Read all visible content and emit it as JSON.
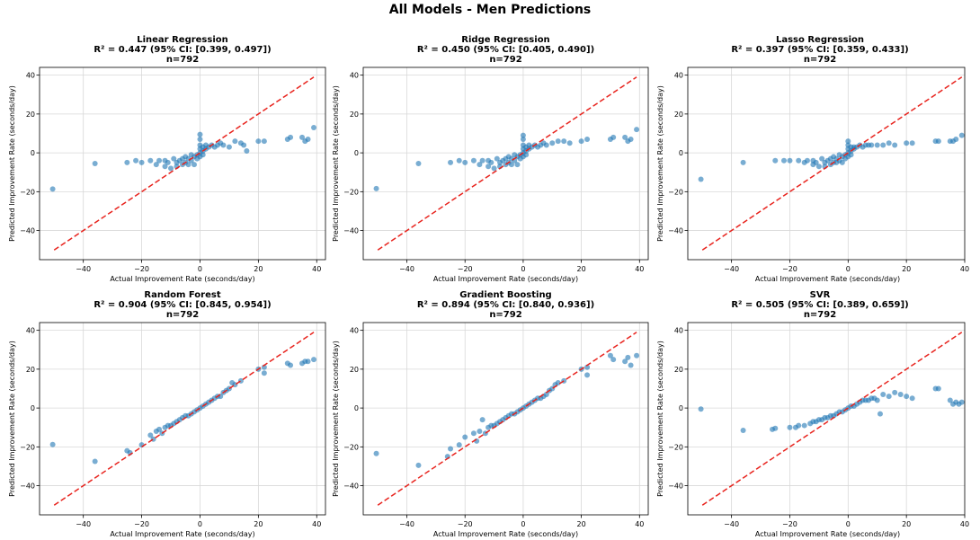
{
  "suptitle": "All Models - Men Predictions",
  "chart_data": [
    {
      "type": "scatter",
      "title_lines": [
        "Linear Regression",
        "R² = 0.447 (95% CI: [0.399, 0.497])",
        "n=792"
      ],
      "xlabel": "Actual Improvement Rate (seconds/day)",
      "ylabel": "Predicted Improvement Rate (seconds/day)",
      "xlim": [
        -55,
        43
      ],
      "ylim": [
        -55,
        44
      ],
      "xticks": [
        -40,
        -20,
        0,
        20,
        40
      ],
      "yticks": [
        -40,
        -20,
        0,
        20,
        40
      ],
      "grid": true,
      "reference_line": [
        [
          -50,
          -50
        ],
        [
          39,
          39
        ]
      ],
      "points": [
        [
          -50.5,
          -18.6
        ],
        [
          -36,
          -5.5
        ],
        [
          -25,
          -5
        ],
        [
          -22,
          -4
        ],
        [
          -20,
          -5
        ],
        [
          -17,
          -4
        ],
        [
          -15,
          -6
        ],
        [
          -14,
          -4
        ],
        [
          -12,
          -4
        ],
        [
          -12,
          -7
        ],
        [
          -11,
          -5
        ],
        [
          -10,
          -8
        ],
        [
          -9,
          -3
        ],
        [
          -8,
          -5
        ],
        [
          -8,
          -7
        ],
        [
          -7,
          -4
        ],
        [
          -6,
          -3
        ],
        [
          -6,
          -6
        ],
        [
          -5,
          -2
        ],
        [
          -5,
          -5
        ],
        [
          -4,
          -3
        ],
        [
          -4,
          -6
        ],
        [
          -3,
          -1
        ],
        [
          -3,
          -4
        ],
        [
          -2,
          -2
        ],
        [
          -2,
          -6
        ],
        [
          -1,
          -1
        ],
        [
          -1,
          -3
        ],
        [
          0,
          0
        ],
        [
          0,
          -2
        ],
        [
          0,
          2
        ],
        [
          0,
          4
        ],
        [
          0,
          7
        ],
        [
          0,
          9.5
        ],
        [
          1,
          1
        ],
        [
          1,
          3
        ],
        [
          1,
          -1
        ],
        [
          2,
          2
        ],
        [
          2,
          4
        ],
        [
          3,
          3
        ],
        [
          4,
          4
        ],
        [
          5,
          3
        ],
        [
          6,
          4
        ],
        [
          7,
          5
        ],
        [
          8,
          4
        ],
        [
          10,
          3
        ],
        [
          12,
          6
        ],
        [
          14,
          5
        ],
        [
          15,
          4
        ],
        [
          16,
          1
        ],
        [
          20,
          6
        ],
        [
          22,
          6
        ],
        [
          30,
          7
        ],
        [
          31,
          8
        ],
        [
          35,
          8
        ],
        [
          37,
          7
        ],
        [
          36,
          6
        ],
        [
          39,
          13
        ]
      ]
    },
    {
      "type": "scatter",
      "title_lines": [
        "Ridge Regression",
        "R² = 0.450 (95% CI: [0.405, 0.490])",
        "n=792"
      ],
      "xlabel": "Actual Improvement Rate (seconds/day)",
      "ylabel": "Predicted Improvement Rate (seconds/day)",
      "xlim": [
        -55,
        43
      ],
      "ylim": [
        -55,
        44
      ],
      "xticks": [
        -40,
        -20,
        0,
        20,
        40
      ],
      "yticks": [
        -40,
        -20,
        0,
        20,
        40
      ],
      "grid": true,
      "reference_line": [
        [
          -50,
          -50
        ],
        [
          39,
          39
        ]
      ],
      "points": [
        [
          -50.5,
          -18.4
        ],
        [
          -36,
          -5.5
        ],
        [
          -25,
          -5
        ],
        [
          -22,
          -4
        ],
        [
          -20,
          -5
        ],
        [
          -17,
          -4
        ],
        [
          -15,
          -6
        ],
        [
          -14,
          -4
        ],
        [
          -12,
          -4
        ],
        [
          -12,
          -7
        ],
        [
          -11,
          -5
        ],
        [
          -10,
          -8
        ],
        [
          -9,
          -3
        ],
        [
          -8,
          -5
        ],
        [
          -8,
          -7
        ],
        [
          -7,
          -4
        ],
        [
          -6,
          -3
        ],
        [
          -6,
          -6
        ],
        [
          -5,
          -2
        ],
        [
          -5,
          -5
        ],
        [
          -4,
          -3
        ],
        [
          -4,
          -6
        ],
        [
          -3,
          -1
        ],
        [
          -3,
          -4
        ],
        [
          -2,
          -2
        ],
        [
          -2,
          -6
        ],
        [
          -1,
          -1
        ],
        [
          -1,
          -3
        ],
        [
          0,
          0
        ],
        [
          0,
          -2
        ],
        [
          0,
          2
        ],
        [
          0,
          4
        ],
        [
          0,
          7
        ],
        [
          0,
          9
        ],
        [
          1,
          1
        ],
        [
          1,
          3
        ],
        [
          1,
          -1
        ],
        [
          2,
          2
        ],
        [
          2,
          4
        ],
        [
          3,
          3
        ],
        [
          4,
          4
        ],
        [
          5,
          3
        ],
        [
          6,
          4
        ],
        [
          7,
          5
        ],
        [
          8,
          4
        ],
        [
          10,
          5
        ],
        [
          12,
          6
        ],
        [
          14,
          6
        ],
        [
          16,
          5
        ],
        [
          20,
          6
        ],
        [
          22,
          7
        ],
        [
          30,
          7
        ],
        [
          31,
          8
        ],
        [
          35,
          8
        ],
        [
          37,
          7
        ],
        [
          36,
          6
        ],
        [
          39,
          12
        ]
      ]
    },
    {
      "type": "scatter",
      "title_lines": [
        "Lasso Regression",
        "R² = 0.397 (95% CI: [0.359, 0.433])",
        "n=792"
      ],
      "xlabel": "Actual Improvement Rate (seconds/day)",
      "ylabel": "Predicted Improvement Rate (seconds/day)",
      "xlim": [
        -55,
        40
      ],
      "ylim": [
        -55,
        44
      ],
      "xticks": [
        -40,
        -20,
        0,
        20,
        40
      ],
      "yticks": [
        -40,
        -20,
        0,
        20,
        40
      ],
      "grid": true,
      "reference_line": [
        [
          -50,
          -50
        ],
        [
          39,
          39
        ]
      ],
      "points": [
        [
          -50.5,
          -13.6
        ],
        [
          -36,
          -5
        ],
        [
          -25,
          -4
        ],
        [
          -22,
          -4
        ],
        [
          -20,
          -4
        ],
        [
          -17,
          -4
        ],
        [
          -15,
          -5
        ],
        [
          -14,
          -4
        ],
        [
          -12,
          -4
        ],
        [
          -12,
          -6
        ],
        [
          -11,
          -5
        ],
        [
          -10,
          -7
        ],
        [
          -9,
          -3
        ],
        [
          -8,
          -5
        ],
        [
          -8,
          -7
        ],
        [
          -7,
          -4
        ],
        [
          -6,
          -3
        ],
        [
          -6,
          -6
        ],
        [
          -5,
          -2
        ],
        [
          -5,
          -5
        ],
        [
          -4,
          -3
        ],
        [
          -4,
          -5
        ],
        [
          -3,
          -1
        ],
        [
          -3,
          -4
        ],
        [
          -2,
          -2
        ],
        [
          -2,
          -5
        ],
        [
          -1,
          -1
        ],
        [
          -1,
          -3
        ],
        [
          0,
          0
        ],
        [
          0,
          -2
        ],
        [
          0,
          2
        ],
        [
          0,
          4
        ],
        [
          0,
          6
        ],
        [
          1,
          1
        ],
        [
          1,
          3
        ],
        [
          1,
          -1
        ],
        [
          2,
          2
        ],
        [
          2,
          3
        ],
        [
          3,
          3
        ],
        [
          4,
          4
        ],
        [
          5,
          3
        ],
        [
          6,
          4
        ],
        [
          7,
          4
        ],
        [
          8,
          4
        ],
        [
          10,
          4
        ],
        [
          12,
          4
        ],
        [
          14,
          5
        ],
        [
          16,
          4
        ],
        [
          20,
          5
        ],
        [
          22,
          5
        ],
        [
          30,
          6
        ],
        [
          31,
          6
        ],
        [
          35,
          6
        ],
        [
          37,
          7
        ],
        [
          36,
          6
        ],
        [
          39,
          9
        ]
      ]
    },
    {
      "type": "scatter",
      "title_lines": [
        "Random Forest",
        "R² = 0.904 (95% CI: [0.845, 0.954])",
        "n=792"
      ],
      "xlabel": "Actual Improvement Rate (seconds/day)",
      "ylabel": "Predicted Improvement Rate (seconds/day)",
      "xlim": [
        -55,
        43
      ],
      "ylim": [
        -55,
        44
      ],
      "xticks": [
        -40,
        -20,
        0,
        20,
        40
      ],
      "yticks": [
        -40,
        -20,
        0,
        20,
        40
      ],
      "grid": true,
      "reference_line": [
        [
          -50,
          -50
        ],
        [
          39,
          39
        ]
      ],
      "points": [
        [
          -50.5,
          -18.8
        ],
        [
          -36,
          -27.5
        ],
        [
          -25,
          -22
        ],
        [
          -24,
          -23
        ],
        [
          -20,
          -19
        ],
        [
          -17,
          -14
        ],
        [
          -16,
          -16
        ],
        [
          -15,
          -12
        ],
        [
          -14,
          -11
        ],
        [
          -13,
          -13
        ],
        [
          -12,
          -10
        ],
        [
          -11,
          -9
        ],
        [
          -10,
          -9
        ],
        [
          -9,
          -8
        ],
        [
          -8,
          -7
        ],
        [
          -7,
          -6
        ],
        [
          -6,
          -5
        ],
        [
          -5,
          -4
        ],
        [
          -4,
          -4
        ],
        [
          -3,
          -3
        ],
        [
          -2,
          -2
        ],
        [
          -1,
          -1
        ],
        [
          0,
          0
        ],
        [
          1,
          1
        ],
        [
          2,
          2
        ],
        [
          3,
          3
        ],
        [
          4,
          4
        ],
        [
          5,
          5
        ],
        [
          6,
          6
        ],
        [
          7,
          6
        ],
        [
          8,
          8
        ],
        [
          9,
          9
        ],
        [
          10,
          10
        ],
        [
          11,
          13
        ],
        [
          12,
          12
        ],
        [
          14,
          14
        ],
        [
          20,
          20
        ],
        [
          22,
          18
        ],
        [
          22,
          21
        ],
        [
          30,
          23
        ],
        [
          31,
          22
        ],
        [
          35,
          23
        ],
        [
          37,
          24
        ],
        [
          36,
          24
        ],
        [
          39,
          25
        ]
      ]
    },
    {
      "type": "scatter",
      "title_lines": [
        "Gradient Boosting",
        "R² = 0.894 (95% CI: [0.840, 0.936])",
        "n=792"
      ],
      "xlabel": "Actual Improvement Rate (seconds/day)",
      "ylabel": "Predicted Improvement Rate (seconds/day)",
      "xlim": [
        -55,
        43
      ],
      "ylim": [
        -55,
        44
      ],
      "xticks": [
        -40,
        -20,
        0,
        20,
        40
      ],
      "yticks": [
        -40,
        -20,
        0,
        20,
        40
      ],
      "grid": true,
      "reference_line": [
        [
          -50,
          -50
        ],
        [
          39,
          39
        ]
      ],
      "points": [
        [
          -50.5,
          -23.4
        ],
        [
          -36,
          -29.5
        ],
        [
          -25,
          -21
        ],
        [
          -26,
          -25
        ],
        [
          -22,
          -19
        ],
        [
          -20,
          -15
        ],
        [
          -17,
          -13
        ],
        [
          -16,
          -17
        ],
        [
          -15,
          -12
        ],
        [
          -14,
          -6
        ],
        [
          -13,
          -13
        ],
        [
          -12,
          -10
        ],
        [
          -11,
          -9
        ],
        [
          -10,
          -9
        ],
        [
          -9,
          -8
        ],
        [
          -8,
          -7
        ],
        [
          -7,
          -6
        ],
        [
          -6,
          -5
        ],
        [
          -5,
          -4
        ],
        [
          -4,
          -3
        ],
        [
          -3,
          -3
        ],
        [
          -2,
          -2
        ],
        [
          -1,
          -1
        ],
        [
          0,
          0
        ],
        [
          1,
          1
        ],
        [
          2,
          2
        ],
        [
          3,
          3
        ],
        [
          4,
          4
        ],
        [
          5,
          5
        ],
        [
          6,
          5
        ],
        [
          7,
          6
        ],
        [
          8,
          7
        ],
        [
          9,
          9
        ],
        [
          10,
          10
        ],
        [
          11,
          12
        ],
        [
          12,
          13
        ],
        [
          14,
          14
        ],
        [
          20,
          20
        ],
        [
          22,
          17
        ],
        [
          22,
          21
        ],
        [
          30,
          27
        ],
        [
          31,
          25
        ],
        [
          35,
          24
        ],
        [
          37,
          22
        ],
        [
          36,
          26
        ],
        [
          39,
          27
        ]
      ]
    },
    {
      "type": "scatter",
      "title_lines": [
        "SVR",
        "R² = 0.505 (95% CI: [0.389, 0.659])",
        "n=792"
      ],
      "xlabel": "Actual Improvement Rate (seconds/day)",
      "ylabel": "Predicted Improvement Rate (seconds/day)",
      "xlim": [
        -55,
        40
      ],
      "ylim": [
        -55,
        44
      ],
      "xticks": [
        -40,
        -20,
        0,
        20,
        40
      ],
      "yticks": [
        -40,
        -20,
        0,
        20,
        40
      ],
      "grid": true,
      "reference_line": [
        [
          -50,
          -50
        ],
        [
          39,
          39
        ]
      ],
      "points": [
        [
          -50.5,
          -0.5
        ],
        [
          -36,
          -11.5
        ],
        [
          -26,
          -11
        ],
        [
          -25,
          -10.5
        ],
        [
          -20,
          -10
        ],
        [
          -18,
          -10
        ],
        [
          -17,
          -9
        ],
        [
          -15,
          -9
        ],
        [
          -13,
          -8
        ],
        [
          -12,
          -7
        ],
        [
          -11,
          -7
        ],
        [
          -10,
          -6
        ],
        [
          -9,
          -6
        ],
        [
          -8,
          -5
        ],
        [
          -7,
          -5
        ],
        [
          -6,
          -4
        ],
        [
          -5,
          -4
        ],
        [
          -4,
          -3
        ],
        [
          -3,
          -2
        ],
        [
          -2,
          -2
        ],
        [
          -1,
          -1
        ],
        [
          0,
          0
        ],
        [
          1,
          1
        ],
        [
          2,
          1
        ],
        [
          3,
          2
        ],
        [
          4,
          3
        ],
        [
          5,
          4
        ],
        [
          6,
          4
        ],
        [
          7,
          4
        ],
        [
          8,
          5
        ],
        [
          9,
          5
        ],
        [
          10,
          4
        ],
        [
          11,
          -3
        ],
        [
          12,
          7
        ],
        [
          14,
          6
        ],
        [
          16,
          8
        ],
        [
          18,
          7
        ],
        [
          20,
          6
        ],
        [
          22,
          5
        ],
        [
          30,
          10
        ],
        [
          31,
          10
        ],
        [
          35,
          4
        ],
        [
          36,
          2
        ],
        [
          37,
          3
        ],
        [
          38,
          2
        ],
        [
          39,
          3
        ]
      ]
    }
  ],
  "colors": {
    "point": "#1f77b4",
    "reference_line": "#e8231d",
    "grid": "#d8d8d8"
  }
}
